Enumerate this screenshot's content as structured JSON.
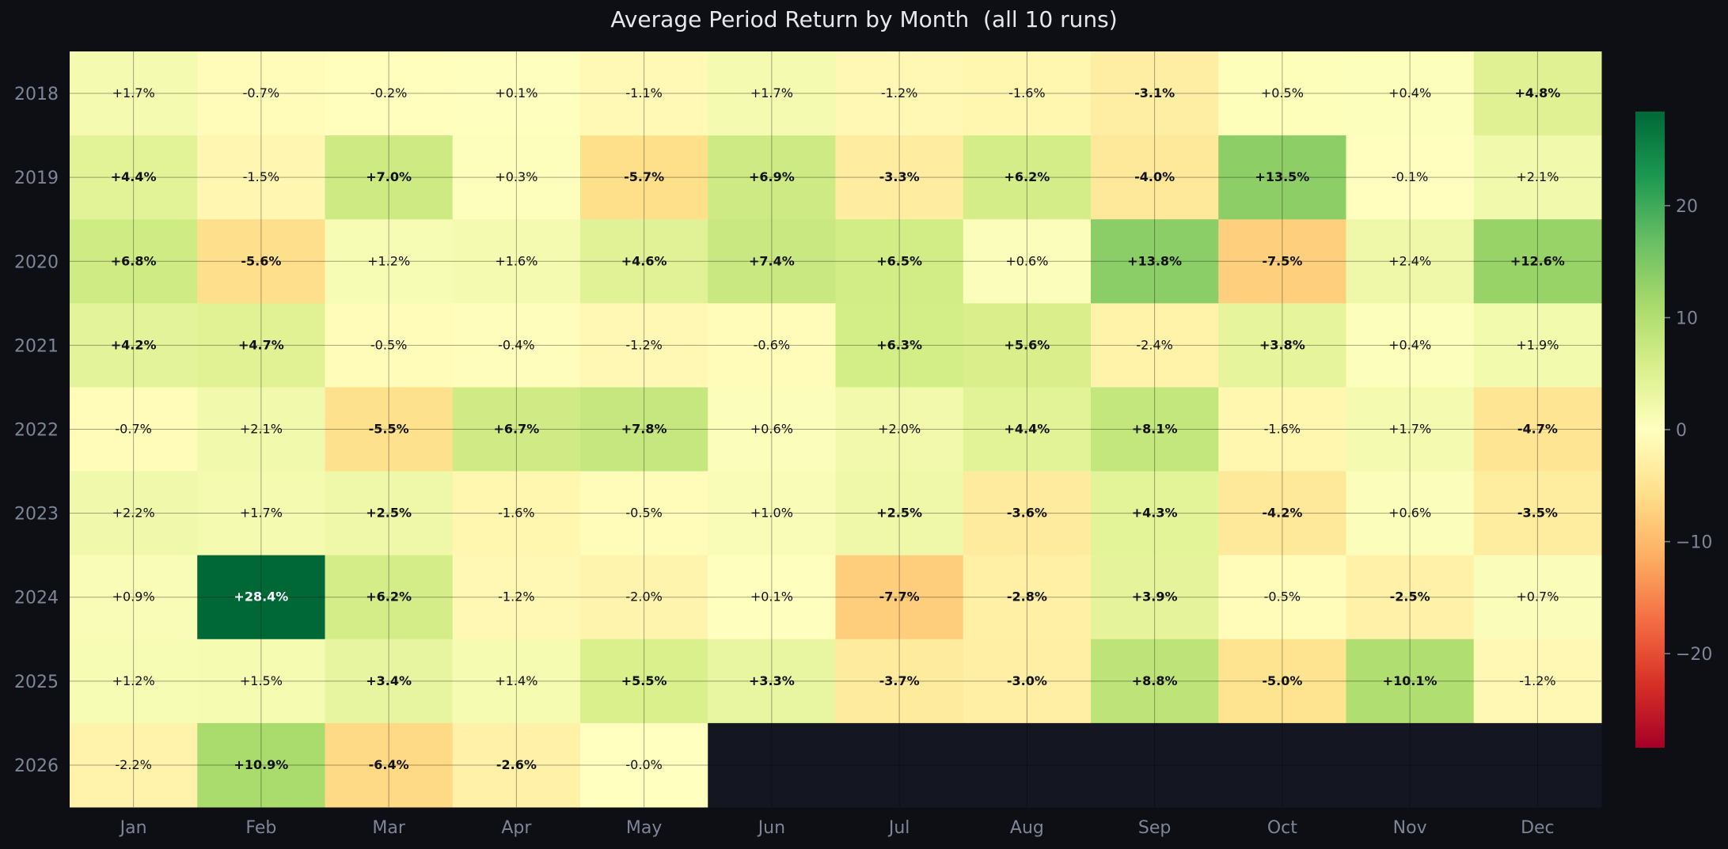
{
  "chart_data": {
    "type": "heatmap",
    "title": "Average Period Return by Month  (all 10 runs)",
    "xlabel": "",
    "ylabel": "",
    "x_categories": [
      "Jan",
      "Feb",
      "Mar",
      "Apr",
      "May",
      "Jun",
      "Jul",
      "Aug",
      "Sep",
      "Oct",
      "Nov",
      "Dec"
    ],
    "y_categories": [
      "2018",
      "2019",
      "2020",
      "2021",
      "2022",
      "2023",
      "2024",
      "2025",
      "2026"
    ],
    "values": [
      [
        1.7,
        -0.7,
        -0.2,
        0.1,
        -1.1,
        1.7,
        -1.2,
        -1.6,
        -3.1,
        0.5,
        0.4,
        4.8
      ],
      [
        4.4,
        -1.5,
        7.0,
        0.3,
        -5.7,
        6.9,
        -3.3,
        6.2,
        -4.0,
        13.5,
        -0.1,
        2.1
      ],
      [
        6.8,
        -5.6,
        1.2,
        1.6,
        4.6,
        7.4,
        6.5,
        0.6,
        13.8,
        -7.5,
        2.4,
        12.6
      ],
      [
        4.2,
        4.7,
        -0.5,
        -0.4,
        -1.2,
        -0.6,
        6.3,
        5.6,
        -2.4,
        3.8,
        0.4,
        1.9
      ],
      [
        -0.7,
        2.1,
        -5.5,
        6.7,
        7.8,
        0.6,
        2.0,
        4.4,
        8.1,
        -1.6,
        1.7,
        -4.7
      ],
      [
        2.2,
        1.7,
        2.5,
        -1.6,
        -0.5,
        1.0,
        2.5,
        -3.6,
        4.3,
        -4.2,
        0.6,
        -3.5
      ],
      [
        0.9,
        28.4,
        6.2,
        -1.2,
        -2.0,
        0.1,
        -7.7,
        -2.8,
        3.9,
        -0.5,
        -2.5,
        0.7
      ],
      [
        1.2,
        1.5,
        3.4,
        1.4,
        5.5,
        3.3,
        -3.7,
        -3.0,
        8.8,
        -5.0,
        10.1,
        -1.2
      ],
      [
        -2.2,
        10.9,
        -6.4,
        -2.6,
        -0.0,
        null,
        null,
        null,
        null,
        null,
        null,
        null
      ]
    ],
    "cell_labels": [
      [
        "+1.7%",
        "-0.7%",
        "-0.2%",
        "+0.1%",
        "-1.1%",
        "+1.7%",
        "-1.2%",
        "-1.6%",
        "-3.1%",
        "+0.5%",
        "+0.4%",
        "+4.8%"
      ],
      [
        "+4.4%",
        "-1.5%",
        "+7.0%",
        "+0.3%",
        "-5.7%",
        "+6.9%",
        "-3.3%",
        "+6.2%",
        "-4.0%",
        "+13.5%",
        "-0.1%",
        "+2.1%"
      ],
      [
        "+6.8%",
        "-5.6%",
        "+1.2%",
        "+1.6%",
        "+4.6%",
        "+7.4%",
        "+6.5%",
        "+0.6%",
        "+13.8%",
        "-7.5%",
        "+2.4%",
        "+12.6%"
      ],
      [
        "+4.2%",
        "+4.7%",
        "-0.5%",
        "-0.4%",
        "-1.2%",
        "-0.6%",
        "+6.3%",
        "+5.6%",
        "-2.4%",
        "+3.8%",
        "+0.4%",
        "+1.9%"
      ],
      [
        "-0.7%",
        "+2.1%",
        "-5.5%",
        "+6.7%",
        "+7.8%",
        "+0.6%",
        "+2.0%",
        "+4.4%",
        "+8.1%",
        "-1.6%",
        "+1.7%",
        "-4.7%"
      ],
      [
        "+2.2%",
        "+1.7%",
        "+2.5%",
        "-1.6%",
        "-0.5%",
        "+1.0%",
        "+2.5%",
        "-3.6%",
        "+4.3%",
        "-4.2%",
        "+0.6%",
        "-3.5%"
      ],
      [
        "+0.9%",
        "+28.4%",
        "+6.2%",
        "-1.2%",
        "-2.0%",
        "+0.1%",
        "-7.7%",
        "-2.8%",
        "+3.9%",
        "-0.5%",
        "-2.5%",
        "+0.7%"
      ],
      [
        "+1.2%",
        "+1.5%",
        "+3.4%",
        "+1.4%",
        "+5.5%",
        "+3.3%",
        "-3.7%",
        "-3.0%",
        "+8.8%",
        "-5.0%",
        "+10.1%",
        "-1.2%"
      ],
      [
        "-2.2%",
        "+10.9%",
        "-6.4%",
        "-2.6%",
        "-0.0%",
        "",
        "",
        "",
        "",
        "",
        "",
        ""
      ]
    ],
    "bold_threshold_abs": 2.5,
    "colormap": "RdYlGn",
    "color_range": [
      -28.4,
      28.4
    ],
    "colorbar_ticks": [
      "-20",
      "-10",
      "0",
      "10",
      "20"
    ],
    "colorbar_tick_values": [
      -20,
      -10,
      0,
      10,
      20
    ],
    "colorbar_ticks_display": [
      "−20",
      "−10",
      "0",
      "10",
      "20"
    ],
    "grid": true,
    "colors": {
      "background": "#0d0f14",
      "plot_background": "#141722",
      "missing_cell": "#141722",
      "tick_label": "#7d8597",
      "title": "#e6e8ee",
      "grid_line": "#000000"
    }
  }
}
